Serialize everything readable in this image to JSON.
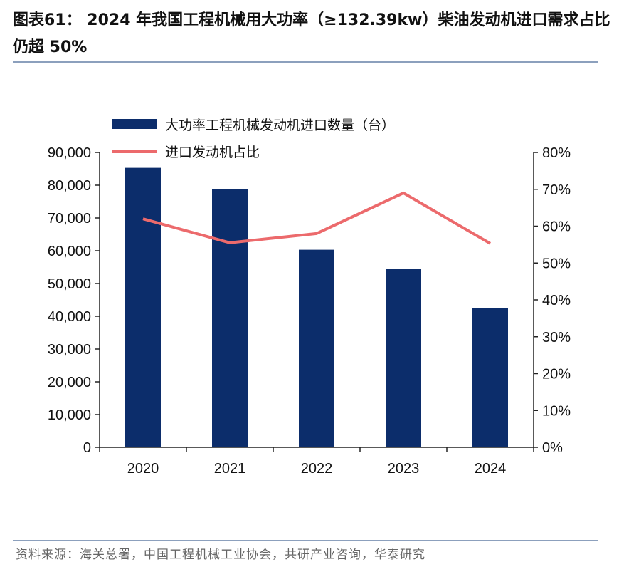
{
  "title": "图表61：  2024 年我国工程机械用大功率（≥132.39kw）柴油发动机进口需求占比仍超 50%",
  "source": "资料来源：海关总署，中国工程机械工业协会，共研产业咨询，华泰研究",
  "colors": {
    "bar": "#0c2d6b",
    "line": "#ec6a6c",
    "axis": "#222222",
    "rule": "#8ca0bd"
  },
  "chart_data": {
    "type": "bar",
    "categories": [
      "2020",
      "2021",
      "2022",
      "2023",
      "2024"
    ],
    "series": [
      {
        "name": "大功率工程机械发动机进口数量（台）",
        "type": "bar",
        "axis": "left",
        "values": [
          85300,
          78800,
          60300,
          54400,
          42400
        ]
      },
      {
        "name": "进口发动机占比",
        "type": "line",
        "axis": "right",
        "values": [
          0.62,
          0.555,
          0.58,
          0.69,
          0.553
        ]
      }
    ],
    "y_left": {
      "min": 0,
      "max": 90000,
      "step": 10000,
      "tick_labels": [
        "0",
        "10,000",
        "20,000",
        "30,000",
        "40,000",
        "50,000",
        "60,000",
        "70,000",
        "80,000",
        "90,000"
      ]
    },
    "y_right": {
      "min": 0,
      "max": 0.8,
      "step": 0.1,
      "tick_labels": [
        "0%",
        "10%",
        "20%",
        "30%",
        "40%",
        "50%",
        "60%",
        "70%",
        "80%"
      ]
    },
    "legend_position": "top-left",
    "grid": false
  }
}
